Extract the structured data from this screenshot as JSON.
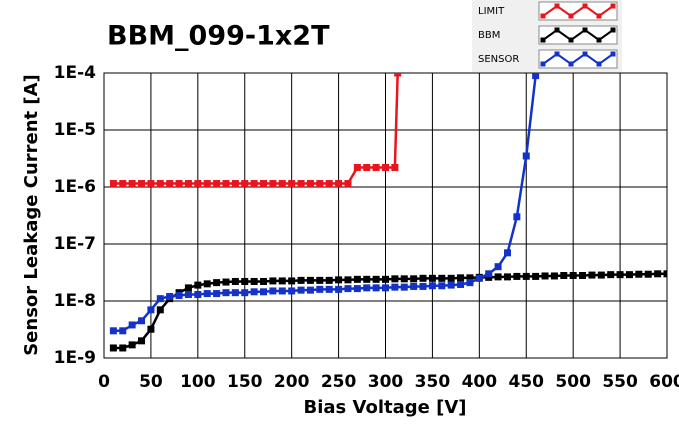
{
  "chart_data": {
    "type": "line",
    "title": "BBM_099-1x2T",
    "x_label": "Bias Voltage [V]",
    "y_label": "Sensor Leakage Current [A]",
    "xlim": [
      0,
      600
    ],
    "xticks": [
      0,
      50,
      100,
      150,
      200,
      250,
      300,
      350,
      400,
      450,
      500,
      550,
      600
    ],
    "ylim": [
      1e-09,
      0.0001
    ],
    "y_log_scale": true,
    "grid": true,
    "legend_position": "top-right",
    "yticks": [
      {
        "value": 1e-09,
        "label": "1E-9"
      },
      {
        "value": 1e-08,
        "label": "1E-8"
      },
      {
        "value": 1e-07,
        "label": "1E-7"
      },
      {
        "value": 1e-06,
        "label": "1E-6"
      },
      {
        "value": 1e-05,
        "label": "1E-5"
      },
      {
        "value": 0.0001,
        "label": "1E-4"
      }
    ],
    "series": [
      {
        "name": "LIMIT",
        "color": "#e8141e",
        "x": [
          10,
          20,
          30,
          40,
          50,
          60,
          70,
          80,
          90,
          100,
          110,
          120,
          130,
          140,
          150,
          160,
          170,
          180,
          190,
          200,
          210,
          220,
          230,
          240,
          250,
          260,
          270,
          280,
          290,
          300,
          310,
          313
        ],
        "values": [
          1.15e-06,
          1.15e-06,
          1.15e-06,
          1.15e-06,
          1.15e-06,
          1.15e-06,
          1.15e-06,
          1.15e-06,
          1.15e-06,
          1.15e-06,
          1.15e-06,
          1.15e-06,
          1.15e-06,
          1.15e-06,
          1.15e-06,
          1.15e-06,
          1.15e-06,
          1.15e-06,
          1.15e-06,
          1.15e-06,
          1.15e-06,
          1.15e-06,
          1.15e-06,
          1.15e-06,
          1.15e-06,
          1.15e-06,
          2.2e-06,
          2.2e-06,
          2.2e-06,
          2.2e-06,
          2.2e-06,
          0.0001
        ]
      },
      {
        "name": "BBM",
        "color": "#000000",
        "x": [
          10,
          20,
          30,
          40,
          50,
          60,
          70,
          80,
          90,
          100,
          110,
          120,
          130,
          140,
          150,
          160,
          170,
          180,
          190,
          200,
          210,
          220,
          230,
          240,
          250,
          260,
          270,
          280,
          290,
          300,
          310,
          320,
          330,
          340,
          350,
          360,
          370,
          380,
          390,
          400,
          410,
          420,
          430,
          440,
          450,
          460,
          470,
          480,
          490,
          500,
          510,
          520,
          530,
          540,
          550,
          560,
          570,
          580,
          590,
          600
        ],
        "values": [
          1.5e-09,
          1.5e-09,
          1.7e-09,
          2e-09,
          3.2e-09,
          7e-09,
          1.1e-08,
          1.4e-08,
          1.7e-08,
          1.9e-08,
          2e-08,
          2.1e-08,
          2.15e-08,
          2.2e-08,
          2.2e-08,
          2.2e-08,
          2.2e-08,
          2.25e-08,
          2.25e-08,
          2.25e-08,
          2.3e-08,
          2.3e-08,
          2.3e-08,
          2.3e-08,
          2.35e-08,
          2.35e-08,
          2.4e-08,
          2.4e-08,
          2.4e-08,
          2.4e-08,
          2.45e-08,
          2.45e-08,
          2.45e-08,
          2.5e-08,
          2.5e-08,
          2.5e-08,
          2.5e-08,
          2.55e-08,
          2.55e-08,
          2.6e-08,
          2.6e-08,
          2.65e-08,
          2.65e-08,
          2.7e-08,
          2.7e-08,
          2.7e-08,
          2.75e-08,
          2.75e-08,
          2.8e-08,
          2.8e-08,
          2.8e-08,
          2.85e-08,
          2.85e-08,
          2.9e-08,
          2.9e-08,
          2.9e-08,
          2.95e-08,
          2.95e-08,
          3e-08,
          3e-08
        ]
      },
      {
        "name": "SENSOR",
        "color": "#1432c8",
        "x": [
          10,
          20,
          30,
          40,
          50,
          60,
          70,
          80,
          90,
          100,
          110,
          120,
          130,
          140,
          150,
          160,
          170,
          180,
          190,
          200,
          210,
          220,
          230,
          240,
          250,
          260,
          270,
          280,
          290,
          300,
          310,
          320,
          330,
          340,
          350,
          360,
          370,
          380,
          390,
          400,
          410,
          420,
          430,
          440,
          450,
          460
        ],
        "values": [
          3e-09,
          3e-09,
          3.8e-09,
          4.5e-09,
          7e-09,
          1.1e-08,
          1.2e-08,
          1.25e-08,
          1.3e-08,
          1.3e-08,
          1.35e-08,
          1.35e-08,
          1.4e-08,
          1.4e-08,
          1.4e-08,
          1.45e-08,
          1.45e-08,
          1.5e-08,
          1.5e-08,
          1.5e-08,
          1.55e-08,
          1.55e-08,
          1.6e-08,
          1.6e-08,
          1.6e-08,
          1.65e-08,
          1.65e-08,
          1.7e-08,
          1.7e-08,
          1.7e-08,
          1.75e-08,
          1.75e-08,
          1.8e-08,
          1.8e-08,
          1.85e-08,
          1.85e-08,
          1.9e-08,
          1.95e-08,
          2.1e-08,
          2.5e-08,
          3e-08,
          4e-08,
          7e-08,
          3e-07,
          3.5e-06,
          9e-05
        ]
      }
    ]
  }
}
